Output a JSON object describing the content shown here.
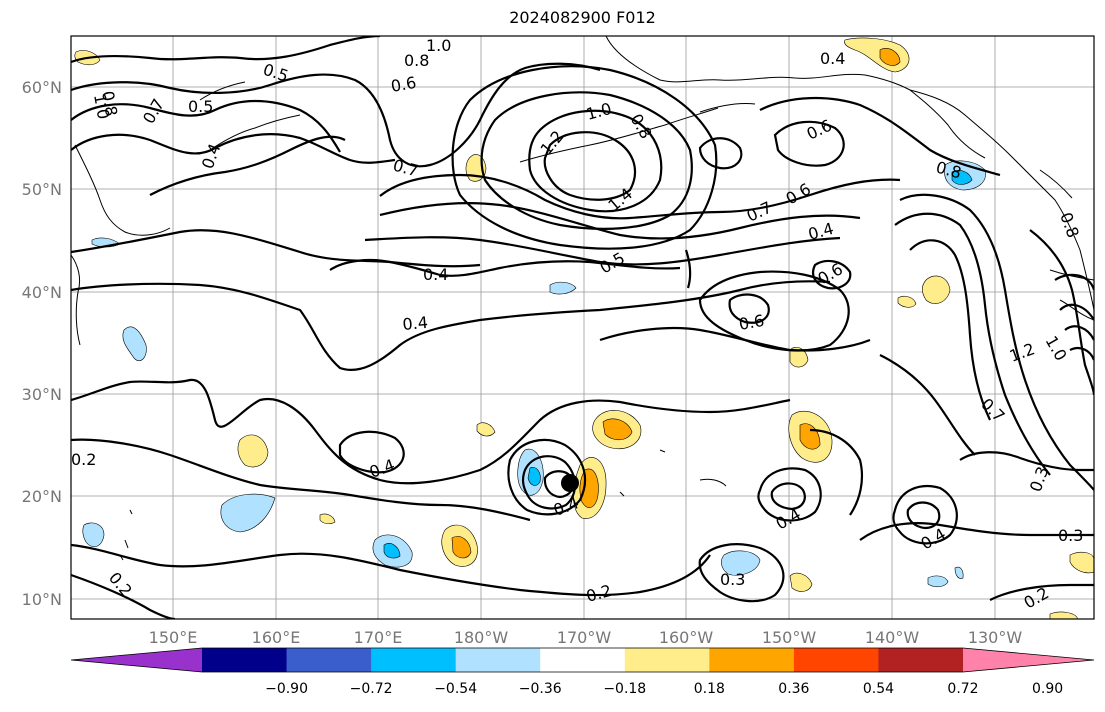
{
  "title": "2024082900 F012",
  "map": {
    "lon_labels": [
      "150°E",
      "160°E",
      "170°E",
      "180°W",
      "170°W",
      "160°W",
      "150°W",
      "140°W",
      "130°W"
    ],
    "lat_labels": [
      "60°N",
      "50°N",
      "40°N",
      "30°N",
      "20°N",
      "10°N"
    ],
    "contour_labels": [
      "1.0",
      "0.8",
      "0.5",
      "0.6",
      "0.7",
      "0.8",
      "1.0",
      "0.5",
      "0.4",
      "0.7",
      "1.2",
      "1.0",
      "0.8",
      "1.4",
      "0.6",
      "0.7",
      "0.6",
      "0.4",
      "0.5",
      "0.4",
      "0.6",
      "0.4",
      "0.6",
      "0.8",
      "0.4",
      "0.2",
      "0.4",
      "0.4",
      "0.2",
      "0.3",
      "0.4",
      "0.3",
      "0.2",
      "0.3",
      "0.2",
      "1.2",
      "1.0",
      "0.7",
      "0.8",
      "0.4"
    ],
    "storm_marker": "tropical-cyclone-center"
  },
  "colorbar": {
    "colors": [
      "#9932cc",
      "#00008b",
      "#3a5fcd",
      "#00bfff",
      "#b0e2ff",
      "#ffffff",
      "#ffec8b",
      "#ffa500",
      "#ff4500",
      "#b22222",
      "#ff82ab"
    ],
    "tick_labels": [
      "−0.90",
      "−0.72",
      "−0.54",
      "−0.36",
      "−0.18",
      "0.18",
      "0.36",
      "0.54",
      "0.72",
      "0.90"
    ]
  }
}
